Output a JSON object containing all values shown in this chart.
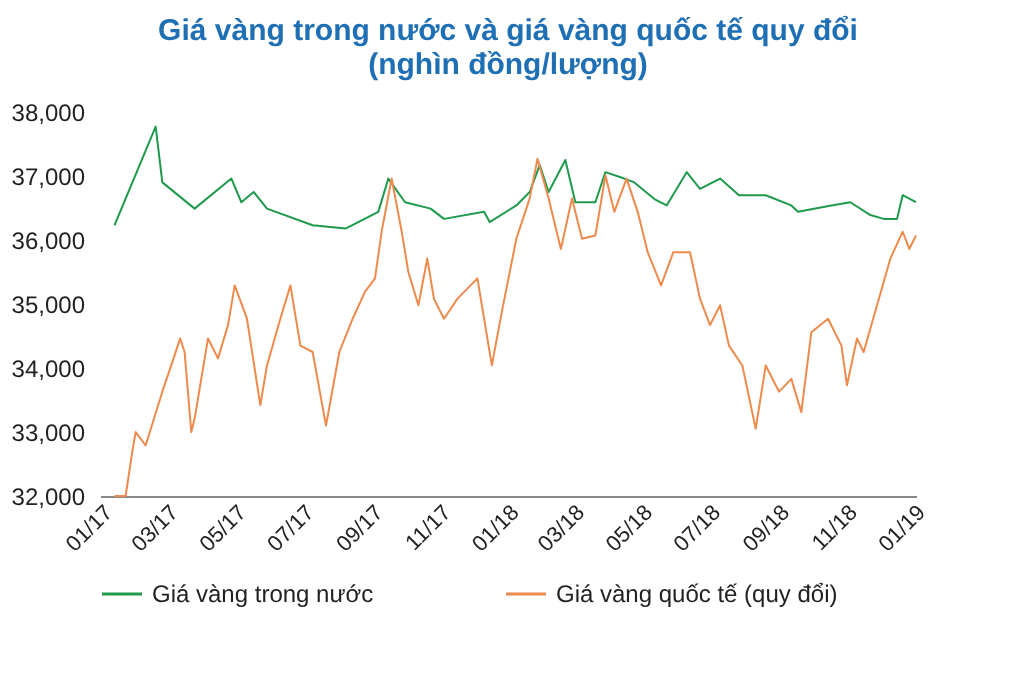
{
  "chart_data": {
    "type": "line",
    "title": [
      "Giá vàng trong nước và giá vàng quốc tế quy đổi",
      "(nghìn đồng/lượng)"
    ],
    "xlim": [
      "2017-01-01",
      "2019-01-04"
    ],
    "xticks": [
      {
        "value": "2017-01-01",
        "label": "01/17"
      },
      {
        "value": "2017-03-01",
        "label": "03/17"
      },
      {
        "value": "2017-05-01",
        "label": "05/17"
      },
      {
        "value": "2017-07-01",
        "label": "07/17"
      },
      {
        "value": "2017-09-01",
        "label": "09/17"
      },
      {
        "value": "2017-11-01",
        "label": "11/17"
      },
      {
        "value": "2018-01-01",
        "label": "01/18"
      },
      {
        "value": "2018-03-01",
        "label": "03/18"
      },
      {
        "value": "2018-05-01",
        "label": "05/18"
      },
      {
        "value": "2018-07-01",
        "label": "07/18"
      },
      {
        "value": "2018-09-01",
        "label": "09/18"
      },
      {
        "value": "2018-11-01",
        "label": "11/18"
      },
      {
        "value": "2019-01-01",
        "label": "01/19"
      }
    ],
    "ylim": [
      32000,
      38000
    ],
    "yticks": [
      {
        "value": 32000,
        "label": "32,000"
      },
      {
        "value": 33000,
        "label": "33,000"
      },
      {
        "value": 34000,
        "label": "34,000"
      },
      {
        "value": 35000,
        "label": "35,000"
      },
      {
        "value": 36000,
        "label": "36,000"
      },
      {
        "value": 37000,
        "label": "37,000"
      },
      {
        "value": 38000,
        "label": "38,000"
      }
    ],
    "grid": false,
    "legend": "bottom",
    "marker": "none",
    "line_style": "solid",
    "series": [
      {
        "name": "Giá vàng  trong nước",
        "color": "#1f9a4c",
        "x": [
          "2017-01-14",
          "2017-02-20",
          "2017-02-26",
          "2017-03-27",
          "2017-04-29",
          "2017-05-08",
          "2017-05-19",
          "2017-05-31",
          "2017-07-11",
          "2017-08-10",
          "2017-09-08",
          "2017-09-17",
          "2017-10-02",
          "2017-10-25",
          "2017-11-06",
          "2017-12-12",
          "2017-12-17",
          "2018-01-10",
          "2018-01-22",
          "2018-01-31",
          "2018-02-08",
          "2018-02-23",
          "2018-03-04",
          "2018-03-22",
          "2018-03-31",
          "2018-04-17",
          "2018-04-26",
          "2018-05-14",
          "2018-05-25",
          "2018-06-12",
          "2018-06-24",
          "2018-07-12",
          "2018-07-29",
          "2018-08-22",
          "2018-09-14",
          "2018-09-20",
          "2018-10-20",
          "2018-11-06",
          "2018-11-24",
          "2018-12-06",
          "2018-12-18",
          "2018-12-23",
          "2019-01-04"
        ],
        "values": [
          36230,
          37770,
          36900,
          36490,
          36960,
          36590,
          36750,
          36490,
          36230,
          36180,
          36440,
          36960,
          36590,
          36490,
          36330,
          36440,
          36280,
          36540,
          36750,
          37170,
          36750,
          37250,
          36590,
          36590,
          37060,
          36960,
          36900,
          36640,
          36540,
          37060,
          36800,
          36960,
          36700,
          36700,
          36540,
          36440,
          36540,
          36590,
          36390,
          36330,
          36330,
          36700,
          36590
        ]
      },
      {
        "name": "Giá vàng  quốc tế (quy đổi)",
        "color": "#ee8a4c",
        "x": [
          "2017-01-14",
          "2017-01-24",
          "2017-01-30",
          "2017-02-02",
          "2017-02-11",
          "2017-02-26",
          "2017-03-04",
          "2017-03-14",
          "2017-03-18",
          "2017-03-24",
          "2017-03-27",
          "2017-04-08",
          "2017-04-17",
          "2017-04-26",
          "2017-05-02",
          "2017-05-13",
          "2017-05-25",
          "2017-05-31",
          "2017-06-12",
          "2017-06-21",
          "2017-06-30",
          "2017-07-11",
          "2017-07-23",
          "2017-08-04",
          "2017-08-16",
          "2017-08-27",
          "2017-09-05",
          "2017-09-11",
          "2017-09-20",
          "2017-09-29",
          "2017-10-05",
          "2017-10-14",
          "2017-10-22",
          "2017-10-28",
          "2017-11-06",
          "2017-11-18",
          "2017-12-06",
          "2017-12-19",
          "2017-12-28",
          "2018-01-10",
          "2018-01-22",
          "2018-01-29",
          "2018-02-08",
          "2018-02-19",
          "2018-03-01",
          "2018-03-10",
          "2018-03-22",
          "2018-03-31",
          "2018-04-08",
          "2018-04-19",
          "2018-04-29",
          "2018-05-08",
          "2018-05-20",
          "2018-05-31",
          "2018-06-15",
          "2018-06-24",
          "2018-07-03",
          "2018-07-12",
          "2018-07-20",
          "2018-08-01",
          "2018-08-13",
          "2018-08-22",
          "2018-09-03",
          "2018-09-14",
          "2018-09-23",
          "2018-10-02",
          "2018-10-17",
          "2018-10-29",
          "2018-11-03",
          "2018-11-12",
          "2018-11-18",
          "2018-11-30",
          "2018-12-12",
          "2018-12-23",
          "2018-12-29",
          "2019-01-04"
        ],
        "values": [
          32000,
          32000,
          32690,
          33000,
          32790,
          33630,
          33940,
          34460,
          34250,
          33000,
          33210,
          34460,
          34150,
          34670,
          35290,
          34770,
          33420,
          34040,
          34770,
          35290,
          34350,
          34250,
          33100,
          34250,
          34770,
          35190,
          35400,
          36130,
          36960,
          36130,
          35500,
          34980,
          35710,
          35080,
          34770,
          35080,
          35400,
          34040,
          34880,
          36020,
          36650,
          37270,
          36650,
          35860,
          36650,
          36020,
          36070,
          37010,
          36440,
          36960,
          36440,
          35810,
          35290,
          35810,
          35810,
          35080,
          34670,
          34980,
          34350,
          34040,
          33050,
          34040,
          33630,
          33830,
          33310,
          34560,
          34770,
          34350,
          33730,
          34460,
          34250,
          34980,
          35710,
          36130,
          35860,
          36070
        ]
      }
    ]
  }
}
